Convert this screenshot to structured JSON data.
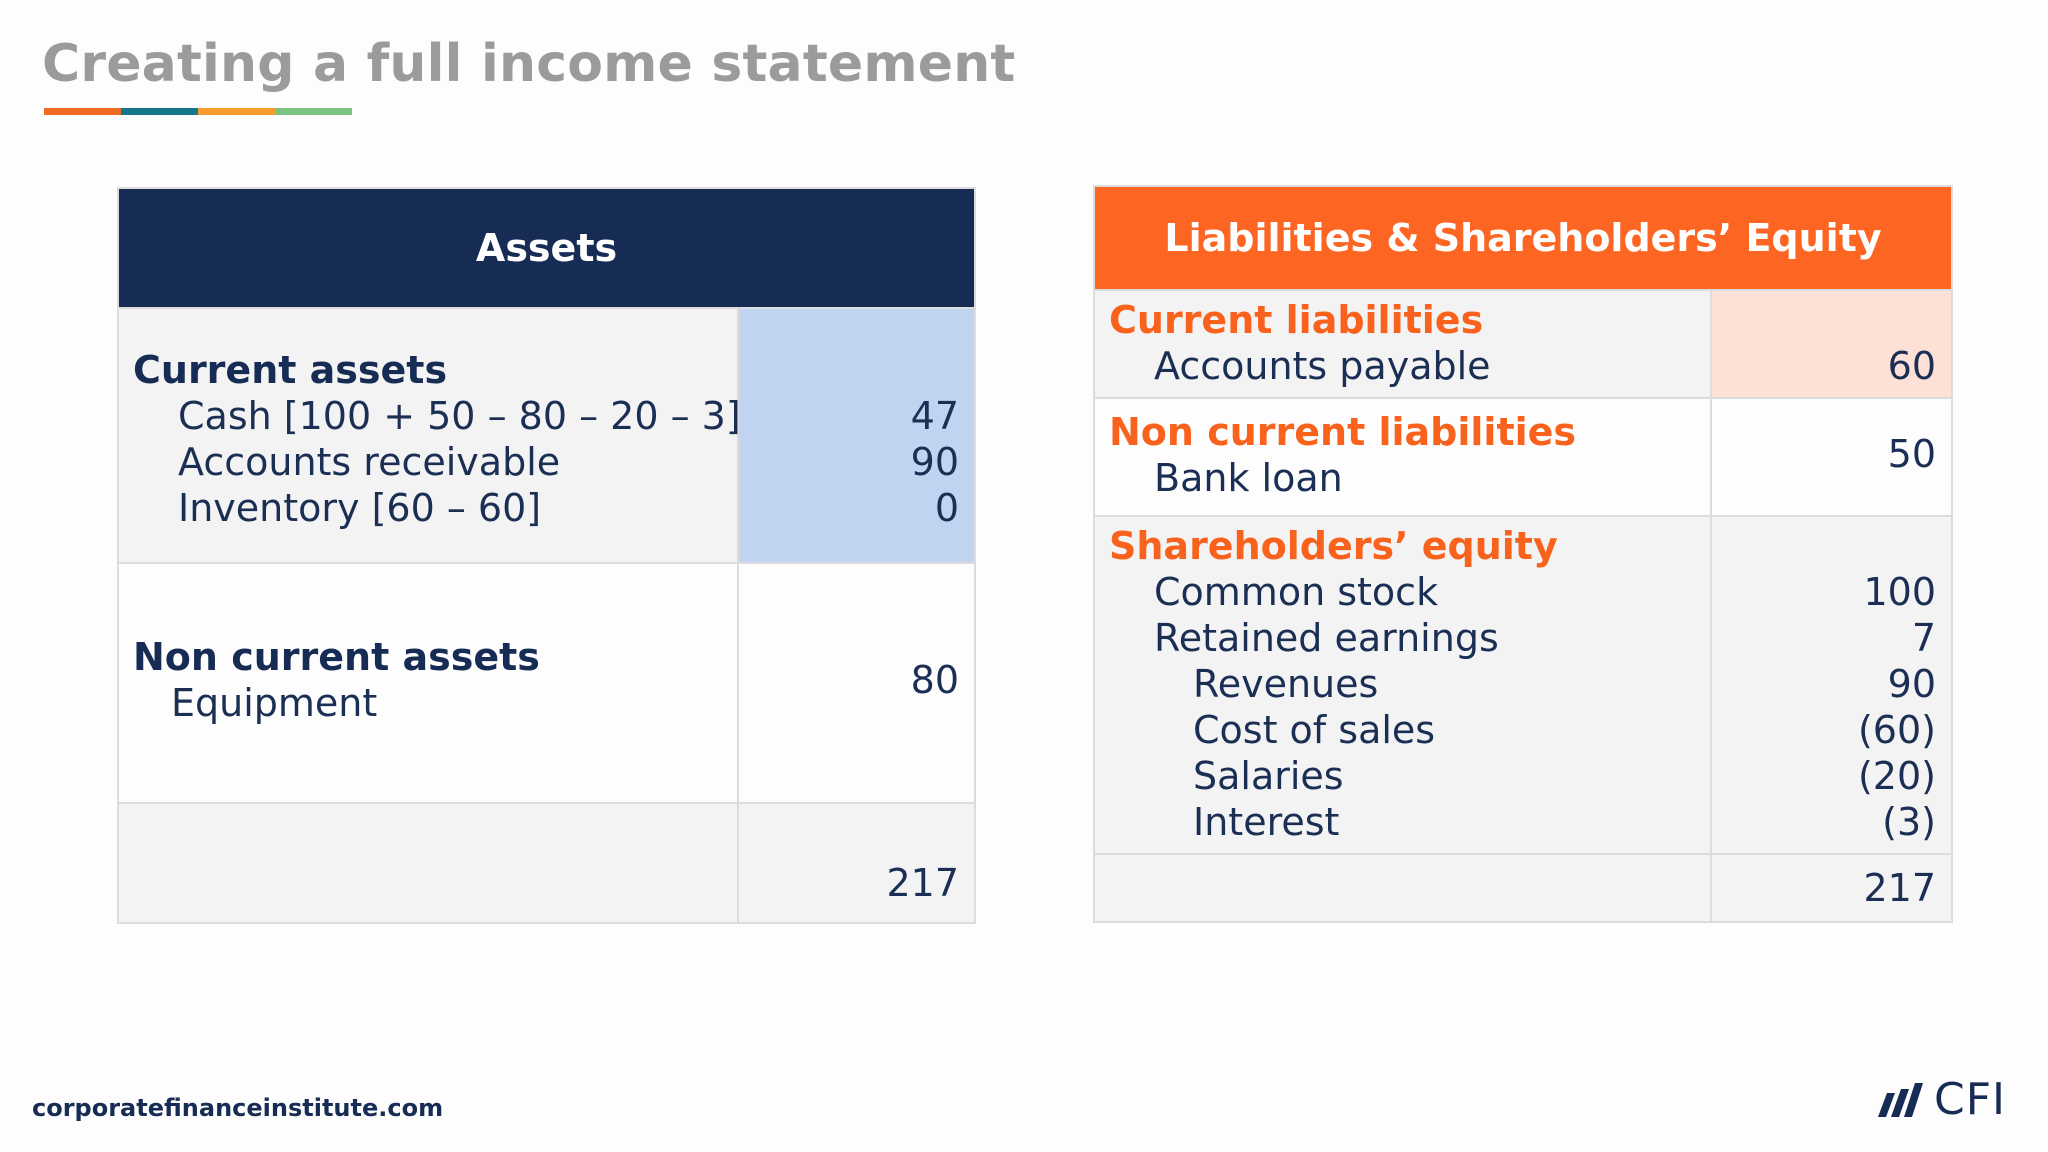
{
  "title": "Creating a full income statement",
  "title_bar_colors": [
    "#f16a24",
    "#17768a",
    "#f89c2d",
    "#7bc47f"
  ],
  "assets": {
    "header": "Assets",
    "header_color": "#172c55",
    "highlight_color": "#c0d3f0",
    "current": {
      "heading": "Current assets",
      "items": [
        {
          "label": "Cash [100 + 50 – 80 – 20 – 3]",
          "value": "47"
        },
        {
          "label": "Accounts receivable",
          "value": "90"
        },
        {
          "label": "Inventory [60 – 60]",
          "value": "0"
        }
      ]
    },
    "non_current": {
      "heading": "Non current assets",
      "items": [
        {
          "label": "Equipment",
          "value": "80"
        }
      ]
    },
    "total": "217"
  },
  "liabilities": {
    "header": "Liabilities & Shareholders’ Equity",
    "header_color": "#fd6522",
    "highlight_color": "#fde1d6",
    "current": {
      "heading": "Current liabilities",
      "items": [
        {
          "label": "Accounts payable",
          "value": "60"
        }
      ]
    },
    "non_current": {
      "heading": "Non current liabilities",
      "items": [
        {
          "label": "Bank loan",
          "value": "50"
        }
      ]
    },
    "equity": {
      "heading": "Shareholders’ equity",
      "items": [
        {
          "label": "Common stock",
          "value": "100"
        },
        {
          "label": "Retained earnings",
          "value": "7"
        }
      ],
      "sub_items": [
        {
          "label": "Revenues",
          "value": "90"
        },
        {
          "label": "Cost of sales",
          "value": "(60)"
        },
        {
          "label": "Salaries",
          "value": "(20)"
        },
        {
          "label": "Interest",
          "value": "(3)"
        }
      ]
    },
    "total": "217"
  },
  "footer": {
    "url": "corporatefinanceinstitute.com",
    "logo_text": "CFI"
  }
}
